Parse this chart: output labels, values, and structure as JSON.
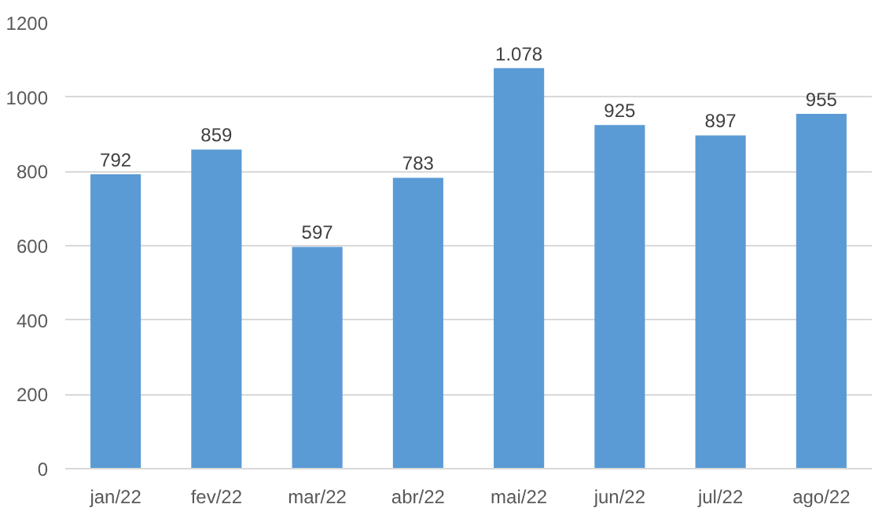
{
  "chart_data": {
    "type": "bar",
    "categories": [
      "jan/22",
      "fev/22",
      "mar/22",
      "abr/22",
      "mai/22",
      "jun/22",
      "jul/22",
      "ago/22"
    ],
    "values": [
      792,
      859,
      597,
      783,
      1078,
      925,
      897,
      955
    ],
    "value_labels": [
      "792",
      "859",
      "597",
      "783",
      "1.078",
      "925",
      "897",
      "955"
    ],
    "color": "#5b9bd5",
    "ylim": [
      0,
      1200
    ],
    "yticks": [
      0,
      200,
      400,
      600,
      800,
      1000,
      1200
    ],
    "grid": "y"
  }
}
